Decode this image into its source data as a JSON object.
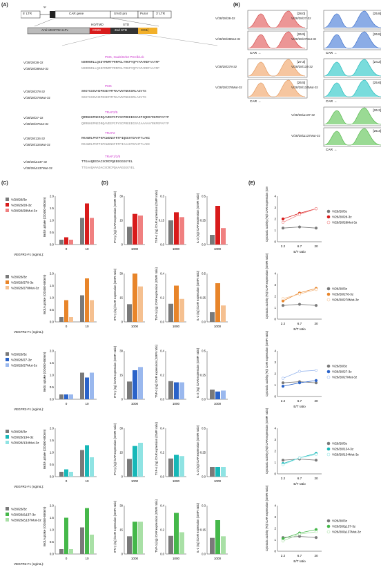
{
  "panels": {
    "A": "(A)",
    "B": "(B)",
    "C": "(C)",
    "D": "(D)",
    "E": "(E)"
  },
  "construct": {
    "ltr5": "5′ LTR",
    "psi": "Ψ",
    "car_gene": "CAR gene",
    "sv40": "SV40 pro",
    "puro": "Puror",
    "ltr3": "3′ LTR",
    "scfv": "Anti-VEGFR2 scFv",
    "hdtmd": "HD/TMD",
    "std": "STD",
    "cd28": "CD28",
    "std2": "2nd STD",
    "cd3z": "CD3ζ"
  },
  "sequences": [
    {
      "name1": "V/28/28/28-3z",
      "seq1": "NSRRNRLLQSDYMNMTPRRPGLTRKPYQPYAPARDFAAYRP",
      "name2": "V/28/28/28Mut-3z",
      "seq2": "NSRRNRLLQSDFMNMTPRRPGLTRKPYQPYAPARDFAAYRP",
      "motifs": "PI3K, Gads/Grb2   PKCθ/Lck"
    },
    {
      "name1": "V/28/28/278-3z",
      "seq1": "SKKYGSSVHDPNSEYMFMAAVNTNKKSRLAGVTS",
      "name2": "V/28/28/278Mut-3z",
      "seq2": "SKKYGSSVHDPNSEFMFMAAVNTNKKSRLAGVTS",
      "motifs": "PI3K"
    },
    {
      "name1": "V/28/28/27-3z",
      "seq1": "QRRNHGPNEDRQAVEEPCPYSCPREEEGSAIPIQEDYRKPEPAFYP",
      "name2": "V/28/28/27Mut-3z",
      "seq2": "QRRNHGPNEDRQAVEEPCPYSCPREEEGSAIAAAAAYRKPEPAFYP",
      "motifs": "TRAF2/5"
    },
    {
      "name1": "V/28/28/134-3z",
      "seq1": "RKAWRLPNTPKPCWGNSFRTPIQEEHTDAHFTLAKI",
      "name2": "V/28/28/134Mut-3z",
      "seq2": "RKAWRLPNTPKPCWGNSFRTPIAAAHTDAHFTLAKI",
      "motifs": "TRAF2"
    },
    {
      "name1": "V/28/28/Δ137-3z",
      "seq1": "TTGAAQEEDACSCRCPQEEEGGGGYEL",
      "name2": "V/28/28/Δ137Mut-3z",
      "seq2": "TTGAAQAAADACSCRCPQAAAGGGGYEL",
      "motifs": "TRAF1/2/5"
    }
  ],
  "flow": [
    {
      "label1": "V/28/28/28-3z",
      "label2": "V/28/28/28Mut-3z",
      "v1": "[28.0]",
      "v2": "[26.9]",
      "color": "#e05050"
    },
    {
      "label1": "V/28/28/27-3z",
      "label2": "V/28/28/27Mut-3z",
      "v1": "[25.8]",
      "v2": "[26.8]",
      "color": "#3e74d6"
    },
    {
      "label1": "V/28/28/278-3z",
      "label2": "V/28/28/278Mut-3z",
      "v1": "[27.3]",
      "v2": "[26.5]",
      "color": "#f0a060"
    },
    {
      "label1": "V/28/28/134-3z",
      "label2": "V/28/28/134Mut-3z",
      "v1": "[24.2]",
      "v2": "[25.6]",
      "color": "#1fc4c4"
    },
    {
      "label1": "V/28/28/Δ137-3z",
      "label2": "V/28/28/Δ137Mut-3z",
      "v1": "[26.2]",
      "v2": "[25.3]",
      "color": "#56c24d"
    }
  ],
  "flow_axis": "CAR",
  "axes": {
    "brdu_y": "BrdU uptake (OD450-650nm)",
    "x_vegfr": "VEGFR2-Fc (ng/mL):",
    "ifn": "IFN-γ (ng) /CAR expression (GMFI ratio)",
    "tnf": "TNF-α (ng) /CAR expression (GMFI ratio)",
    "il2": "IL-2 (ng) /CAR expression (GMFI ratio)",
    "cyto": "Cytotoxic activity (%)/ CAR expression (GMFI ratio)",
    "et": "E/T ratio",
    "x1000": "1000"
  },
  "chart_data": [
    {
      "type": "bar",
      "row": 1,
      "panel": "C",
      "series": [
        {
          "name": "V/28/28/3z",
          "values": [
            0.2,
            1.1
          ]
        },
        {
          "name": "V/28/28/28-3z",
          "values": [
            0.3,
            1.7
          ]
        },
        {
          "name": "V/28/28/28Mut-3z",
          "values": [
            0.2,
            1.1
          ]
        }
      ],
      "categories": [
        "0",
        "10"
      ],
      "ylim": [
        0,
        2
      ],
      "colors": [
        "#7a7a7a",
        "#d81b1b",
        "#f08080"
      ]
    },
    {
      "type": "bar",
      "row": 2,
      "panel": "C",
      "series": [
        {
          "name": "V/28/28/3z",
          "values": [
            0.2,
            1.1
          ]
        },
        {
          "name": "V/28/28/278-3z",
          "values": [
            0.9,
            1.8
          ]
        },
        {
          "name": "V/28/28/278Mut-3z",
          "values": [
            0.2,
            0.9
          ]
        }
      ],
      "categories": [
        "0",
        "10"
      ],
      "ylim": [
        0,
        2
      ],
      "colors": [
        "#7a7a7a",
        "#e8852a",
        "#f5c090"
      ]
    },
    {
      "type": "bar",
      "row": 3,
      "panel": "C",
      "series": [
        {
          "name": "V/28/28/3z",
          "values": [
            0.2,
            1.1
          ]
        },
        {
          "name": "V/28/28/27-3z",
          "values": [
            0.2,
            0.9
          ]
        },
        {
          "name": "V/28/28/27Mut-3z",
          "values": [
            0.2,
            1.1
          ]
        }
      ],
      "categories": [
        "0",
        "10"
      ],
      "ylim": [
        0,
        2
      ],
      "colors": [
        "#7a7a7a",
        "#2a63c9",
        "#9ab8ee"
      ]
    },
    {
      "type": "bar",
      "row": 4,
      "panel": "C",
      "series": [
        {
          "name": "V/28/28/3z",
          "values": [
            0.2,
            1.1
          ]
        },
        {
          "name": "V/28/28/134-3z",
          "values": [
            0.3,
            1.3
          ]
        },
        {
          "name": "V/28/28/134Mut-3z",
          "values": [
            0.2,
            0.8
          ]
        }
      ],
      "categories": [
        "0",
        "10"
      ],
      "ylim": [
        0,
        2
      ],
      "colors": [
        "#7a7a7a",
        "#17b8b8",
        "#8fe3e3"
      ]
    },
    {
      "type": "bar",
      "row": 5,
      "panel": "C",
      "series": [
        {
          "name": "V/28/28/3z",
          "values": [
            0.2,
            1.1
          ]
        },
        {
          "name": "V/28/28/Δ137-3z",
          "values": [
            1.5,
            1.9
          ]
        },
        {
          "name": "V/28/28/Δ137Mut-3z",
          "values": [
            0.2,
            0.8
          ]
        }
      ],
      "categories": [
        "0",
        "10"
      ],
      "ylim": [
        0,
        2
      ],
      "colors": [
        "#7a7a7a",
        "#45b84a",
        "#a9e0a6"
      ]
    },
    {
      "type": "bar",
      "panel": "D",
      "rows": [
        {
          "ifn": [
            11,
            19,
            18
          ],
          "tnf": [
            0.15,
            0.2,
            0.17
          ],
          "il2": [
            0.1,
            0.4,
            0.17
          ],
          "ylim_ifn": [
            0,
            30
          ],
          "ylim_tnf": [
            0,
            0.3
          ],
          "ylim_il2": [
            0,
            0.5
          ]
        },
        {
          "ifn": [
            11,
            30,
            22
          ],
          "tnf": [
            0.15,
            0.3,
            0.19
          ],
          "il2": [
            0.1,
            0.4,
            0.17
          ],
          "ylim_ifn": [
            0,
            30
          ],
          "ylim_tnf": [
            0,
            0.4
          ],
          "ylim_il2": [
            0,
            0.5
          ]
        },
        {
          "ifn": [
            11,
            18,
            20
          ],
          "tnf": [
            0.15,
            0.14,
            0.14
          ],
          "il2": [
            0.1,
            0.08,
            0.09
          ],
          "ylim_ifn": [
            0,
            30
          ],
          "ylim_tnf": [
            0,
            0.4
          ],
          "ylim_il2": [
            0,
            0.5
          ]
        },
        {
          "ifn": [
            11,
            19,
            21
          ],
          "tnf": [
            0.15,
            0.18,
            0.17
          ],
          "il2": [
            0.1,
            0.1,
            0.1
          ],
          "ylim_ifn": [
            0,
            30
          ],
          "ylim_tnf": [
            0,
            0.4
          ],
          "ylim_il2": [
            0,
            0.5
          ]
        },
        {
          "ifn": [
            11,
            20,
            20
          ],
          "tnf": [
            0.15,
            0.34,
            0.18
          ],
          "il2": [
            0.1,
            0.21,
            0.11
          ],
          "ylim_ifn": [
            0,
            30
          ],
          "ylim_tnf": [
            0,
            0.4
          ],
          "ylim_il2": [
            0,
            0.3
          ]
        }
      ]
    },
    {
      "type": "line",
      "panel": "E",
      "x": [
        "2.2",
        "6.7",
        "20"
      ],
      "ylim": [
        0,
        4
      ],
      "rows": [
        {
          "series": [
            {
              "name": "V/28/28/3z",
              "values": [
                1.2,
                1.3,
                1.2
              ]
            },
            {
              "name": "V/28/28/28-3z",
              "values": [
                2.0,
                2.5,
                2.9
              ]
            },
            {
              "name": "V/28/28/28Mut-3z",
              "values": [
                1.7,
                2.4,
                2.9
              ]
            }
          ]
        },
        {
          "series": [
            {
              "name": "V/28/28/3z",
              "values": [
                1.2,
                1.3,
                1.2
              ]
            },
            {
              "name": "V/28/28/278-3z",
              "values": [
                1.6,
                2.3,
                2.7
              ]
            },
            {
              "name": "V/28/28/278Mut-3z",
              "values": [
                1.8,
                2.2,
                2.6
              ]
            }
          ]
        },
        {
          "series": [
            {
              "name": "V/28/28/3z",
              "values": [
                1.2,
                1.3,
                1.2
              ]
            },
            {
              "name": "V/28/28/27-3z",
              "values": [
                0.9,
                1.2,
                1.4
              ]
            },
            {
              "name": "V/28/28/27Mut-3z",
              "values": [
                1.6,
                2.2,
                2.3
              ]
            }
          ]
        },
        {
          "series": [
            {
              "name": "V/28/28/3z",
              "values": [
                1.2,
                1.3,
                1.2
              ]
            },
            {
              "name": "V/28/28/134-3z",
              "values": [
                0.9,
                1.4,
                1.8
              ]
            },
            {
              "name": "V/28/28/134Mut-3z",
              "values": [
                0.8,
                1.4,
                1.7
              ]
            }
          ]
        },
        {
          "series": [
            {
              "name": "V/28/28/3z",
              "values": [
                1.2,
                1.3,
                1.2
              ]
            },
            {
              "name": "V/28/28/Δ137-3z",
              "values": [
                1.1,
                1.6,
                1.9
              ]
            },
            {
              "name": "V/28/28/Δ137Mut-3z",
              "values": [
                0.9,
                1.5,
                1.7
              ]
            }
          ]
        }
      ]
    }
  ],
  "legend_rows": [
    [
      "V/28/28/3z",
      "V/28/28/28-3z",
      "V/28/28/28Mut-3z"
    ],
    [
      "V/28/28/3z",
      "V/28/28/278-3z",
      "V/28/28/278Mut-3z"
    ],
    [
      "V/28/28/3z",
      "V/28/28/27-3z",
      "V/28/28/27Mut-3z"
    ],
    [
      "V/28/28/3z",
      "V/28/28/134-3z",
      "V/28/28/134Mut-3z"
    ],
    [
      "V/28/28/3z",
      "V/28/28/Δ137-3z",
      "V/28/28/Δ137Mut-3z"
    ]
  ],
  "legend_colors": [
    [
      "#7a7a7a",
      "#d81b1b",
      "#f08080"
    ],
    [
      "#7a7a7a",
      "#e8852a",
      "#f5c090"
    ],
    [
      "#7a7a7a",
      "#2a63c9",
      "#9ab8ee"
    ],
    [
      "#7a7a7a",
      "#17b8b8",
      "#8fe3e3"
    ],
    [
      "#7a7a7a",
      "#45b84a",
      "#a9e0a6"
    ]
  ]
}
